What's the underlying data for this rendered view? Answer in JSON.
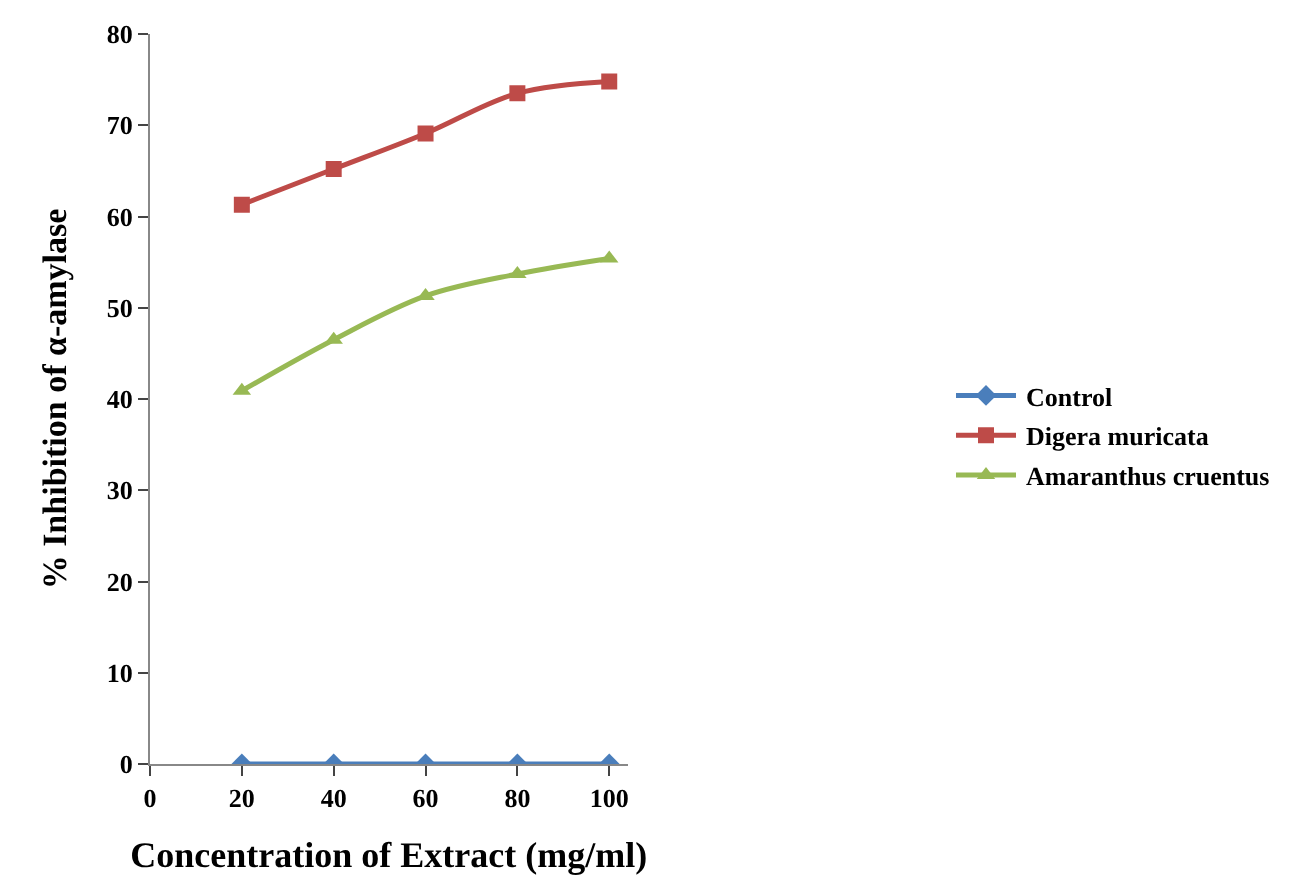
{
  "chart_data": {
    "type": "line",
    "xlabel": "Concentration of Extract (mg/ml)",
    "ylabel": "% Inhibition of α-amylase",
    "x": [
      20,
      40,
      60,
      80,
      100
    ],
    "series": [
      {
        "name": "Control",
        "color": "#4a7ebb",
        "values": [
          0,
          0,
          0,
          0,
          0
        ],
        "marker": "diamond"
      },
      {
        "name": "Digera muricata",
        "color": "#be4b48",
        "values": [
          61.3,
          65.2,
          69.1,
          73.5,
          74.8
        ],
        "marker": "square"
      },
      {
        "name": "Amaranthus cruentus",
        "color": "#98b954",
        "values": [
          40.9,
          46.5,
          51.3,
          53.7,
          55.4
        ],
        "marker": "triangle"
      }
    ],
    "xlim": [
      0,
      104
    ],
    "xticks": [
      0,
      20,
      40,
      60,
      80,
      100
    ],
    "ylim": [
      0,
      80
    ],
    "yticks": [
      0,
      10,
      20,
      30,
      40,
      50,
      60,
      70,
      80
    ],
    "legend": "right",
    "line_style": "solid"
  }
}
